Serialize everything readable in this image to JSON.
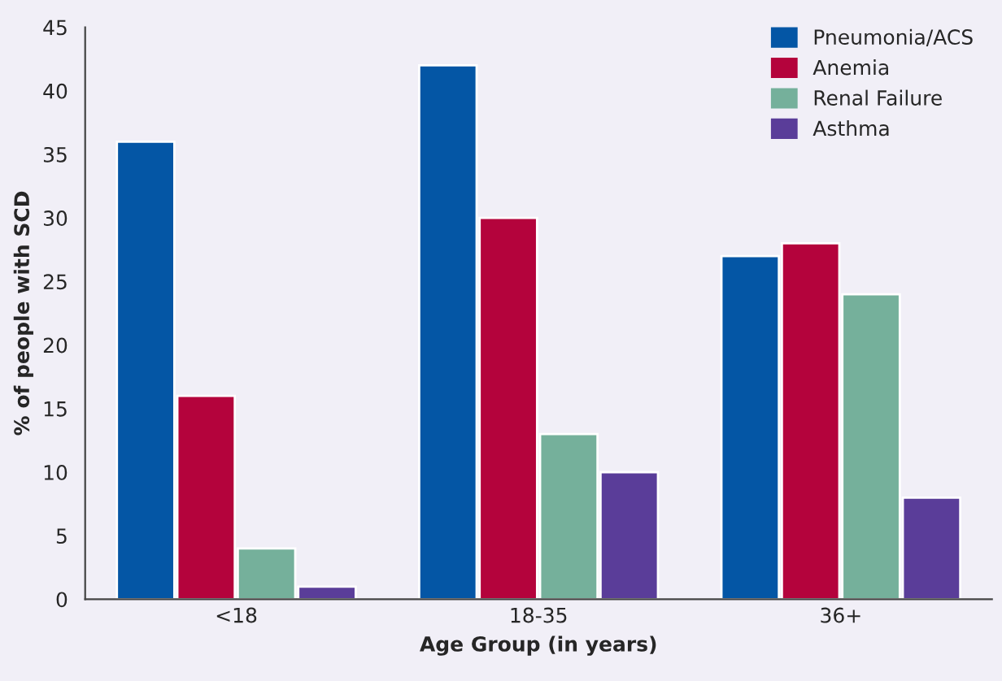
{
  "chart_data": {
    "type": "bar",
    "xlabel": "Age Group (in years)",
    "ylabel": "% of people with SCD",
    "categories": [
      "<18",
      "18-35",
      "36+"
    ],
    "series": [
      {
        "name": "Pneumonia/ACS",
        "color": "#0456a5",
        "values": [
          36,
          42,
          27
        ]
      },
      {
        "name": "Anemia",
        "color": "#b4033c",
        "values": [
          16,
          30,
          28
        ]
      },
      {
        "name": "Renal Failure",
        "color": "#75b09b",
        "values": [
          4,
          13,
          24
        ]
      },
      {
        "name": "Asthma",
        "color": "#5a3d99",
        "values": [
          1,
          10,
          8
        ]
      }
    ],
    "ylim": [
      0,
      45
    ],
    "yticks": [
      0,
      5,
      10,
      15,
      20,
      25,
      30,
      35,
      40,
      45
    ],
    "grid": false,
    "legend": "top right"
  }
}
